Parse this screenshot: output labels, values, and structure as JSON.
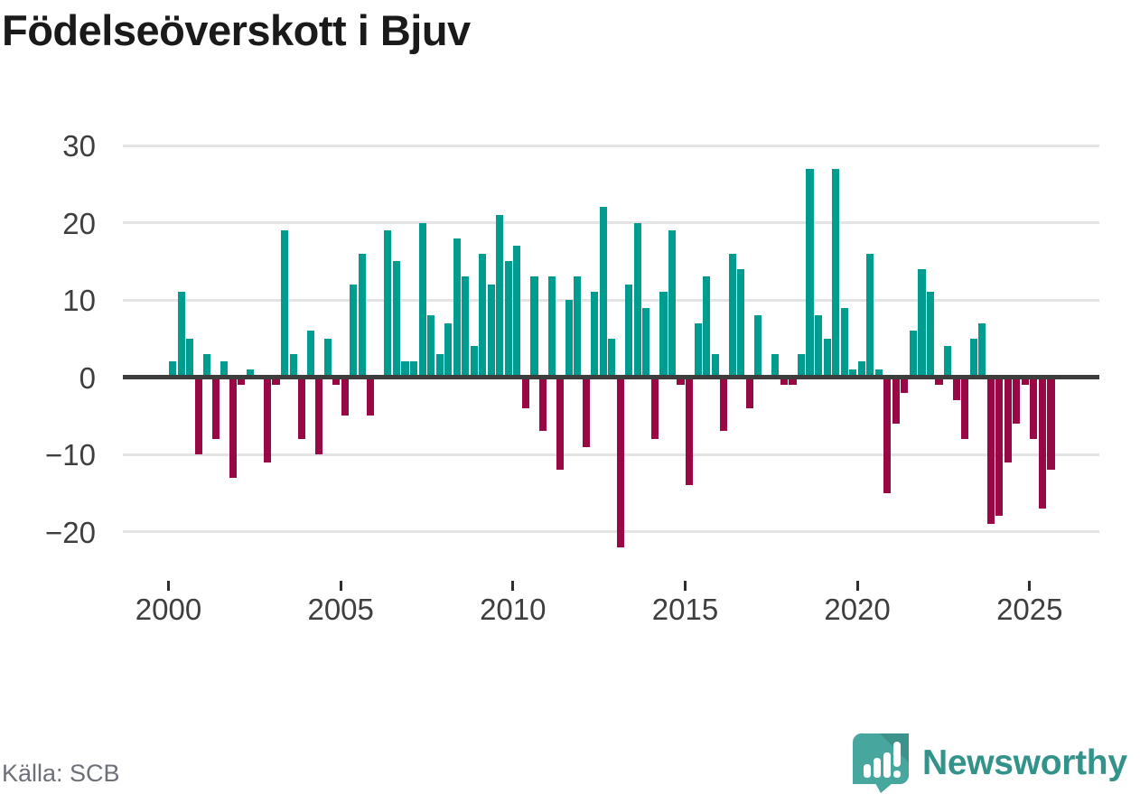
{
  "title": "Födelseöverskott i Bjuv",
  "source_note": "Källa: SCB",
  "branding": {
    "name": "Newsworthy",
    "logo_icon": "speech-bubble-with-bar-chart-and-exclamation",
    "logo_color": "#47a69d",
    "logo_fold_color": "#3c938b",
    "text_color": "#33938a"
  },
  "chart_data": {
    "type": "bar",
    "title": "Födelseöverskott i Bjuv",
    "frequency": "quarterly",
    "grid": true,
    "ylim": [
      -24,
      32
    ],
    "y_tick_values": [
      30,
      20,
      10,
      0,
      -10,
      -20
    ],
    "y_tick_labels": [
      "30",
      "20",
      "10",
      "0",
      "−10",
      "−20"
    ],
    "x_tick_labels": [
      "2000",
      "2005",
      "2010",
      "2015",
      "2020",
      "2025"
    ],
    "colors": {
      "positive": "#009c90",
      "negative": "#9a0745",
      "grid": "#e4e4e4",
      "axis": "#3d3d3d"
    },
    "years": [
      {
        "year": 2000,
        "values": [
          2,
          11,
          5,
          -10
        ]
      },
      {
        "year": 2001,
        "values": [
          3,
          -8,
          2,
          -13
        ]
      },
      {
        "year": 2002,
        "values": [
          -1,
          1,
          0,
          -11
        ]
      },
      {
        "year": 2003,
        "values": [
          -1,
          19,
          3,
          -8
        ]
      },
      {
        "year": 2004,
        "values": [
          6,
          -10,
          5,
          -1
        ]
      },
      {
        "year": 2005,
        "values": [
          -5,
          12,
          16,
          -5
        ]
      },
      {
        "year": 2006,
        "values": [
          0,
          19,
          15,
          2
        ]
      },
      {
        "year": 2007,
        "values": [
          2,
          20,
          8,
          3
        ]
      },
      {
        "year": 2008,
        "values": [
          7,
          18,
          13,
          4
        ]
      },
      {
        "year": 2009,
        "values": [
          16,
          12,
          21,
          15
        ]
      },
      {
        "year": 2010,
        "values": [
          17,
          -4,
          13,
          -7
        ]
      },
      {
        "year": 2011,
        "values": [
          13,
          -12,
          10,
          13
        ]
      },
      {
        "year": 2012,
        "values": [
          -9,
          11,
          22,
          5
        ]
      },
      {
        "year": 2013,
        "values": [
          -22,
          12,
          20,
          9
        ]
      },
      {
        "year": 2014,
        "values": [
          -8,
          11,
          19,
          -1
        ]
      },
      {
        "year": 2015,
        "values": [
          -14,
          7,
          13,
          3
        ]
      },
      {
        "year": 2016,
        "values": [
          -7,
          16,
          14,
          -4
        ]
      },
      {
        "year": 2017,
        "values": [
          8,
          0,
          3,
          -1
        ]
      },
      {
        "year": 2018,
        "values": [
          -1,
          3,
          27,
          8
        ]
      },
      {
        "year": 2019,
        "values": [
          5,
          27,
          9,
          1
        ]
      },
      {
        "year": 2020,
        "values": [
          2,
          16,
          1,
          -15
        ]
      },
      {
        "year": 2021,
        "values": [
          -6,
          -2,
          6,
          14
        ]
      },
      {
        "year": 2022,
        "values": [
          11,
          -1,
          4,
          -3
        ]
      },
      {
        "year": 2023,
        "values": [
          -8,
          5,
          7,
          -19
        ]
      },
      {
        "year": 2024,
        "values": [
          -18,
          -11,
          -6,
          -1
        ]
      },
      {
        "year": 2025,
        "values": [
          -8,
          -17,
          -12
        ]
      }
    ]
  }
}
